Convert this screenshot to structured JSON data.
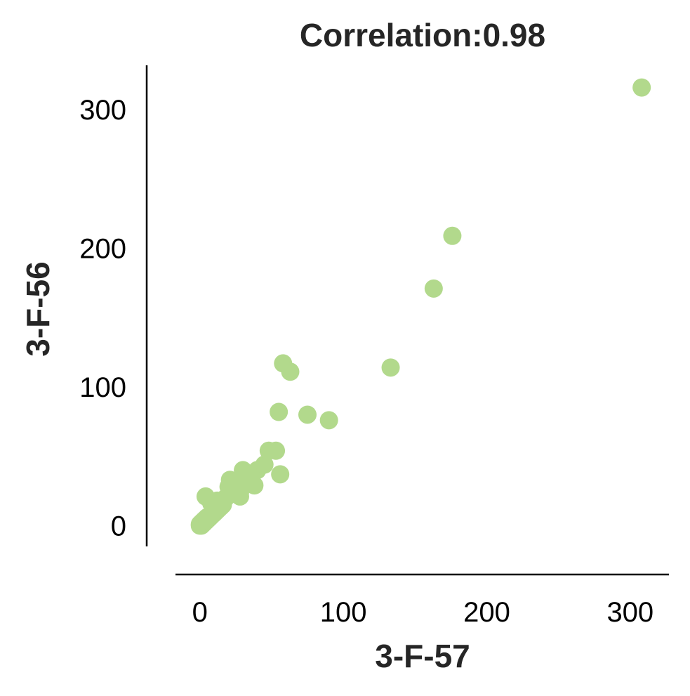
{
  "chart_data": {
    "type": "scatter",
    "title": "Correlation:0.98",
    "xlabel": "3-F-57",
    "ylabel": "3-F-56",
    "xlim": [
      -17,
      327
    ],
    "ylim": [
      -15,
      332
    ],
    "xticks": [
      0,
      100,
      200,
      300
    ],
    "yticks": [
      0,
      100,
      200,
      300
    ],
    "xtick_labels": [
      "0",
      "100",
      "200",
      "300"
    ],
    "ytick_labels": [
      "0",
      "100",
      "200",
      "300"
    ],
    "grid": false,
    "point_color": "#b2d98c",
    "points": [
      [
        0,
        0
      ],
      [
        0,
        1
      ],
      [
        1,
        0
      ],
      [
        1,
        2
      ],
      [
        2,
        1
      ],
      [
        2,
        3
      ],
      [
        3,
        2
      ],
      [
        3,
        4
      ],
      [
        4,
        3
      ],
      [
        4,
        5
      ],
      [
        5,
        4
      ],
      [
        5,
        6
      ],
      [
        6,
        5
      ],
      [
        7,
        6
      ],
      [
        8,
        7
      ],
      [
        9,
        8
      ],
      [
        10,
        9
      ],
      [
        11,
        10
      ],
      [
        12,
        11
      ],
      [
        13,
        12
      ],
      [
        14,
        13
      ],
      [
        15,
        14
      ],
      [
        4,
        21
      ],
      [
        8,
        16
      ],
      [
        12,
        18
      ],
      [
        16,
        15
      ],
      [
        18,
        20
      ],
      [
        20,
        22
      ],
      [
        22,
        25
      ],
      [
        24,
        27
      ],
      [
        26,
        28
      ],
      [
        28,
        24
      ],
      [
        30,
        30
      ],
      [
        32,
        33
      ],
      [
        34,
        35
      ],
      [
        36,
        31
      ],
      [
        38,
        29
      ],
      [
        20,
        28
      ],
      [
        21,
        33
      ],
      [
        25,
        32
      ],
      [
        28,
        21
      ],
      [
        30,
        40
      ],
      [
        40,
        40
      ],
      [
        45,
        44
      ],
      [
        48,
        54
      ],
      [
        53,
        54
      ],
      [
        56,
        37
      ],
      [
        55,
        82
      ],
      [
        58,
        117
      ],
      [
        63,
        111
      ],
      [
        75,
        80
      ],
      [
        90,
        76
      ],
      [
        133,
        114
      ],
      [
        163,
        171
      ],
      [
        176,
        209
      ],
      [
        308,
        316
      ]
    ]
  }
}
